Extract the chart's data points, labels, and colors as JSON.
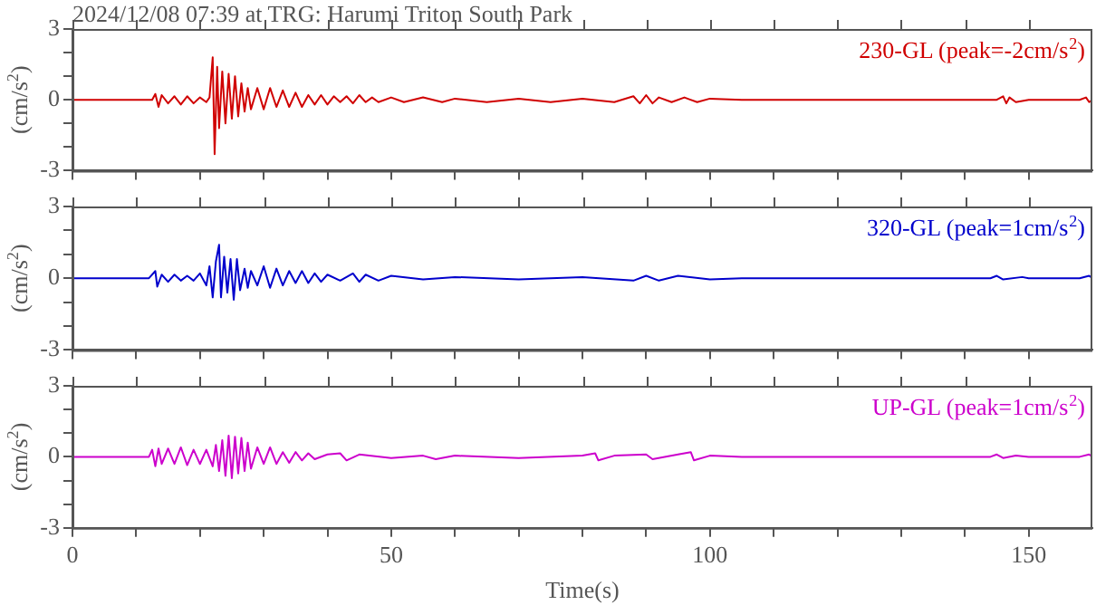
{
  "chart_data": [
    {
      "type": "line",
      "title": "2024/12/08 07:39 at TRG: Harumi Triton South Park",
      "ylabel": "(cm/s$^{2}$)",
      "tick_labels": "y",
      "grid": false,
      "legend": false,
      "xlim": [
        0,
        160
      ],
      "ylim": [
        -3,
        3
      ],
      "xticks": [
        0,
        {
          "value": 10,
          "label": null
        },
        {
          "value": 20,
          "label": null
        },
        {
          "value": 30,
          "label": null
        },
        {
          "value": 40,
          "label": null
        },
        50,
        {
          "value": 60,
          "label": null
        },
        {
          "value": 70,
          "label": null
        },
        {
          "value": 80,
          "label": null
        },
        {
          "value": 90,
          "label": null
        },
        100,
        {
          "value": 110,
          "label": null
        },
        {
          "value": 120,
          "label": null
        },
        {
          "value": 130,
          "label": null
        },
        {
          "value": 140,
          "label": null
        },
        150
      ],
      "yticks": [
        -3,
        {
          "value": -2,
          "label": null
        },
        {
          "value": -1,
          "label": null
        },
        0,
        {
          "value": 1,
          "label": null
        },
        {
          "value": 2,
          "label": null
        },
        3
      ],
      "x": [
        0,
        5,
        10,
        12.5,
        13,
        13.5,
        14,
        15,
        16,
        17,
        18,
        19,
        20,
        21,
        21.5,
        22,
        22.3,
        22.7,
        23,
        23.5,
        24,
        24.5,
        25,
        25.5,
        26,
        26.5,
        27,
        27.5,
        28,
        29,
        30,
        31,
        32,
        33,
        34,
        35,
        36,
        37,
        38,
        39,
        40,
        41,
        42,
        43,
        44,
        45,
        46,
        47,
        48,
        50,
        52,
        55,
        58,
        60,
        65,
        70,
        75,
        80,
        85,
        88,
        89,
        90,
        91,
        92,
        94,
        96,
        98,
        100,
        105,
        110,
        120,
        130,
        145,
        146,
        146.5,
        147,
        148,
        150,
        158,
        159,
        159.5,
        160
      ],
      "series": [
        {
          "name": "230-GL (peak=-2cm/s$^{2}$)",
          "color": "#d00000",
          "values": [
            0,
            0,
            0,
            0,
            0.25,
            -0.3,
            0.2,
            -0.15,
            0.15,
            -0.2,
            0.15,
            -0.15,
            0.1,
            -0.1,
            0.1,
            1.8,
            -2.3,
            1.4,
            -1.2,
            1.2,
            -1.0,
            1.1,
            -0.8,
            1.0,
            -0.7,
            0.7,
            -0.5,
            0.5,
            -0.4,
            0.5,
            -0.4,
            0.5,
            -0.3,
            0.4,
            -0.3,
            0.3,
            -0.3,
            0.2,
            -0.2,
            0.2,
            -0.2,
            0.15,
            -0.1,
            0.15,
            -0.15,
            0.2,
            -0.1,
            0.1,
            -0.1,
            0.1,
            -0.1,
            0.1,
            -0.1,
            0.05,
            -0.1,
            0.05,
            -0.1,
            0.05,
            -0.1,
            0.15,
            -0.15,
            0.2,
            -0.15,
            0.1,
            -0.1,
            0.1,
            -0.1,
            0.05,
            0,
            0,
            0,
            0,
            0,
            0.15,
            -0.15,
            0.1,
            -0.1,
            0,
            0,
            0.1,
            -0.1,
            0
          ]
        }
      ]
    },
    {
      "type": "line",
      "ylabel": "(cm/s$^{2}$)",
      "tick_labels": "y",
      "grid": false,
      "legend": false,
      "xlim": [
        0,
        160
      ],
      "ylim": [
        -3,
        3
      ],
      "xticks": [
        0,
        {
          "value": 10,
          "label": null
        },
        {
          "value": 20,
          "label": null
        },
        {
          "value": 30,
          "label": null
        },
        {
          "value": 40,
          "label": null
        },
        50,
        {
          "value": 60,
          "label": null
        },
        {
          "value": 70,
          "label": null
        },
        {
          "value": 80,
          "label": null
        },
        {
          "value": 90,
          "label": null
        },
        100,
        {
          "value": 110,
          "label": null
        },
        {
          "value": 120,
          "label": null
        },
        {
          "value": 130,
          "label": null
        },
        {
          "value": 140,
          "label": null
        },
        150
      ],
      "yticks": [
        -3,
        {
          "value": -2,
          "label": null
        },
        {
          "value": -1,
          "label": null
        },
        0,
        {
          "value": 1,
          "label": null
        },
        {
          "value": 2,
          "label": null
        },
        3
      ],
      "x": [
        0,
        12,
        13,
        13.3,
        14,
        15,
        16,
        17,
        18,
        19,
        20,
        21,
        21.5,
        22,
        22.5,
        23,
        23.3,
        23.8,
        24.3,
        24.8,
        25.3,
        25.8,
        26.3,
        27,
        27.5,
        28,
        29,
        30,
        31,
        32,
        33,
        34,
        35,
        36,
        37,
        38,
        39,
        40,
        42,
        44,
        45,
        46,
        48,
        50,
        55,
        60,
        70,
        80,
        88,
        90,
        92,
        95,
        100,
        105,
        120,
        144,
        145,
        146,
        149,
        150,
        158,
        159.5,
        160
      ],
      "series": [
        {
          "name": "320-GL (peak=1cm/s$^{2}$)",
          "color": "#0000cc",
          "values": [
            0,
            0,
            0.3,
            -0.35,
            0.15,
            -0.15,
            0.15,
            -0.1,
            0.1,
            -0.1,
            0.2,
            -0.3,
            0.5,
            -0.8,
            0.7,
            1.4,
            -0.8,
            0.9,
            -0.6,
            0.8,
            -0.9,
            0.8,
            -0.5,
            0.4,
            -0.4,
            0.3,
            -0.3,
            0.5,
            -0.4,
            0.4,
            -0.3,
            0.3,
            -0.2,
            0.3,
            -0.2,
            0.2,
            -0.15,
            0.15,
            -0.1,
            0.2,
            -0.15,
            0.15,
            -0.1,
            0.1,
            -0.05,
            0.05,
            -0.05,
            0.05,
            -0.1,
            0.1,
            -0.1,
            0.1,
            -0.05,
            0,
            0,
            0,
            0.1,
            -0.05,
            0.05,
            0,
            0,
            0.1,
            0
          ]
        }
      ]
    },
    {
      "type": "line",
      "xlabel": "Time(s)",
      "ylabel": "(cm/s$^{2}$)",
      "grid": false,
      "legend": false,
      "xlim": [
        0,
        160
      ],
      "ylim": [
        -3,
        3
      ],
      "xticks": [
        0,
        {
          "value": 10,
          "label": null
        },
        {
          "value": 20,
          "label": null
        },
        {
          "value": 30,
          "label": null
        },
        {
          "value": 40,
          "label": null
        },
        50,
        {
          "value": 60,
          "label": null
        },
        {
          "value": 70,
          "label": null
        },
        {
          "value": 80,
          "label": null
        },
        {
          "value": 90,
          "label": null
        },
        100,
        {
          "value": 110,
          "label": null
        },
        {
          "value": 120,
          "label": null
        },
        {
          "value": 130,
          "label": null
        },
        {
          "value": 140,
          "label": null
        },
        150
      ],
      "yticks": [
        -3,
        {
          "value": -2,
          "label": null
        },
        {
          "value": -1,
          "label": null
        },
        0,
        {
          "value": 1,
          "label": null
        },
        {
          "value": 2,
          "label": null
        },
        3
      ],
      "x": [
        0,
        12,
        12.5,
        13,
        13.5,
        14,
        15,
        16,
        17,
        18,
        19,
        20,
        21,
        22,
        22.5,
        23,
        23.5,
        24,
        24.5,
        25,
        25.5,
        26,
        26.5,
        27,
        27.5,
        28,
        29,
        30,
        31,
        32,
        33,
        34,
        35,
        36,
        37,
        38,
        40,
        42,
        43,
        45,
        50,
        55,
        57,
        60,
        70,
        80,
        82,
        82.5,
        85,
        90,
        91,
        95,
        97,
        97.5,
        100,
        105,
        120,
        144,
        145,
        146,
        148,
        150,
        158,
        159.5,
        160
      ],
      "series": [
        {
          "name": "UP-GL (peak=1cm/s$^{2}$)",
          "color": "#cc00cc",
          "values": [
            0,
            0,
            0.3,
            -0.4,
            0.35,
            -0.3,
            0.35,
            -0.3,
            0.4,
            -0.35,
            0.3,
            -0.3,
            0.3,
            -0.4,
            0.5,
            -0.6,
            0.7,
            -0.8,
            0.9,
            -0.9,
            0.85,
            -0.7,
            0.8,
            -0.6,
            0.6,
            -0.5,
            0.4,
            -0.3,
            0.4,
            -0.3,
            0.2,
            -0.25,
            0.2,
            -0.15,
            0.15,
            -0.1,
            0.1,
            0.15,
            -0.15,
            0.1,
            -0.05,
            0.05,
            -0.1,
            0.05,
            -0.05,
            0.05,
            0.15,
            -0.15,
            0.05,
            0.1,
            -0.1,
            0.1,
            0.2,
            -0.15,
            0.05,
            0,
            0,
            0,
            0.1,
            -0.05,
            0.05,
            0,
            0,
            0.1,
            0
          ]
        }
      ]
    }
  ]
}
